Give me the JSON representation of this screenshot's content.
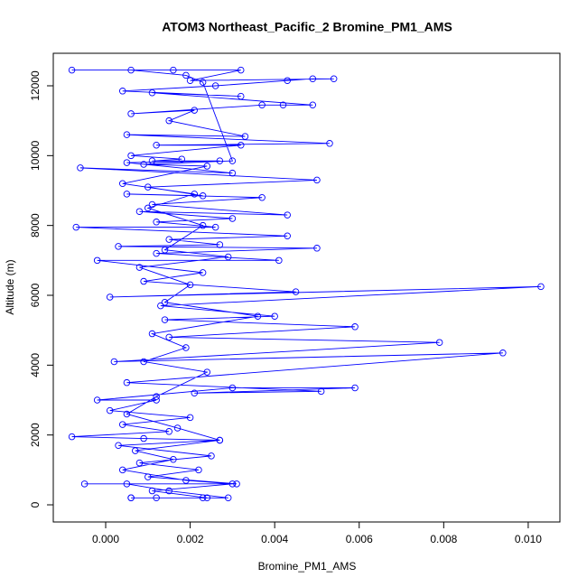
{
  "chart_data": {
    "type": "line",
    "title": "ATOM3 Northeast_Pacific_2 Bromine_PM1_AMS",
    "xlabel": "Bromine_PM1_AMS",
    "ylabel": "Altitude (m)",
    "color": "#0000ff",
    "markers": true,
    "xlim": [
      -0.00124,
      0.01075
    ],
    "ylim": [
      -491,
      12931
    ],
    "xticks": [
      {
        "value": 0,
        "label": "0.000"
      },
      {
        "value": 0.002,
        "label": "0.002"
      },
      {
        "value": 0.004,
        "label": "0.004"
      },
      {
        "value": 0.006,
        "label": "0.006"
      },
      {
        "value": 0.008,
        "label": "0.008"
      },
      {
        "value": 0.01,
        "label": "0.010"
      }
    ],
    "yticks": [
      0,
      2000,
      4000,
      6000,
      8000,
      10000,
      12000
    ],
    "x": [
      0.0023,
      0.0006,
      0.0012,
      0.0029,
      0.0015,
      0.0005,
      -0.0005,
      0.0031,
      0.001,
      0.0022,
      0.0008,
      0.0025,
      0.0003,
      0.0027,
      0.0009,
      -0.0008,
      0.0015,
      0.0004,
      0.002,
      0.0001,
      0.0012,
      -0.0002,
      0.003,
      0.0059,
      0.0021,
      0.0051,
      0.0005,
      0.0094,
      0.0002,
      0.0079,
      0.0015,
      0.0059,
      0.0014,
      0.004,
      0.0013,
      0.0103,
      0.0001,
      0.0045,
      0.0009,
      0.0023,
      -0.0002,
      0.0041,
      0.0012,
      0.005,
      0.0003,
      0.0027,
      0.0015,
      0.0043,
      -0.0007,
      0.0026,
      0.0012,
      0.003,
      0.0008,
      0.0043,
      0.0011,
      0.0037,
      0.0005,
      0.0023,
      0.001,
      0.005,
      -0.0006,
      0.003,
      0.0005,
      0.0027,
      0.0011,
      0.0018,
      0.0006,
      0.0032,
      0.0012,
      0.0053,
      0.0005,
      0.0033,
      0.0015,
      0.0021,
      0.0006,
      0.0037,
      0.0042,
      0.0049,
      0.0011,
      0.0032,
      0.0004,
      0.0026,
      0.0043,
      0.0049,
      0.0054,
      0.002,
      0.0032,
      0.0016,
      -0.0008,
      0.0006,
      0.0019,
      0.0023,
      0.003,
      0.0009,
      0.0024,
      0.0004,
      0.0021,
      0.001,
      0.0023,
      0.0014,
      0.0029,
      0.0008,
      0.002,
      0.0014,
      0.0036,
      0.0011,
      0.0019,
      0.0009,
      0.0024,
      0.0012,
      0.0005,
      0.0017,
      0.0027,
      0.0007,
      0.0016,
      0.0004,
      0.0019,
      0.003,
      0.0011,
      0.0024,
      0.0006
    ],
    "values": [
      200,
      200,
      200,
      200,
      400,
      600,
      600,
      600,
      800,
      1000,
      1200,
      1400,
      1700,
      1850,
      1900,
      1950,
      2100,
      2300,
      2500,
      2700,
      3000,
      3000,
      3350,
      3350,
      3200,
      3250,
      3500,
      4350,
      4100,
      4650,
      4800,
      5100,
      5300,
      5400,
      5700,
      6250,
      5950,
      6100,
      6400,
      6650,
      7000,
      7000,
      7200,
      7350,
      7400,
      7450,
      7600,
      7700,
      7950,
      7950,
      8100,
      8200,
      8400,
      8300,
      8600,
      8800,
      8900,
      8850,
      9100,
      9300,
      9650,
      9500,
      9800,
      9850,
      9850,
      9900,
      10000,
      10300,
      10300,
      10350,
      10600,
      10550,
      11000,
      11300,
      11200,
      11450,
      11450,
      11450,
      11800,
      11700,
      11850,
      12000,
      12150,
      12200,
      12200,
      12150,
      12450,
      12450,
      12450,
      12450,
      12300,
      12100,
      9850,
      9750,
      9700,
      9200,
      8900,
      8500,
      8000,
      7300,
      7100,
      6800,
      6300,
      5800,
      5400,
      4900,
      4500,
      4100,
      3800,
      3100,
      2600,
      2200,
      1850,
      1550,
      1300,
      1000,
      700,
      600,
      400,
      200,
      200
    ]
  }
}
